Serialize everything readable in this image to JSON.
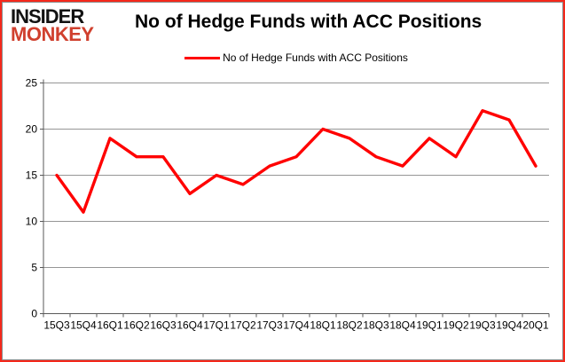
{
  "logo": {
    "line1": "INSIDER",
    "line2": "MONKEY"
  },
  "title": "No of Hedge Funds with ACC Positions",
  "legend": {
    "label": "No of Hedge Funds with ACC Positions"
  },
  "colors": {
    "series_line": "#ff0000",
    "legend_swatch": "#ff0000",
    "logo_black": "#121212",
    "logo_red": "#d0402e",
    "outer_border_red": "#f5281b",
    "chart_frame_gray": "#8c8c8c",
    "gridline_gray": "#969696",
    "axis_gray": "#595959",
    "text_black": "#000000",
    "background": "#ffffff"
  },
  "chart_data": {
    "type": "line",
    "title": "No of Hedge Funds with ACC Positions",
    "categories": [
      "15Q3",
      "15Q4",
      "16Q1",
      "16Q2",
      "16Q3",
      "16Q4",
      "17Q1",
      "17Q2",
      "17Q3",
      "17Q4",
      "18Q1",
      "18Q2",
      "18Q3",
      "18Q4",
      "19Q1",
      "19Q2",
      "19Q3",
      "19Q4",
      "20Q1"
    ],
    "series": [
      {
        "name": "No of Hedge Funds with ACC Positions",
        "values": [
          15,
          11,
          19,
          17,
          17,
          13,
          15,
          14,
          16,
          17,
          20,
          19,
          17,
          16,
          19,
          17,
          22,
          21,
          16
        ]
      }
    ],
    "xlabel": "",
    "ylabel": "",
    "ylim": [
      0,
      25
    ],
    "yticks": [
      0,
      5,
      10,
      15,
      20,
      25
    ],
    "grid": true,
    "legend_position": "top-center"
  }
}
